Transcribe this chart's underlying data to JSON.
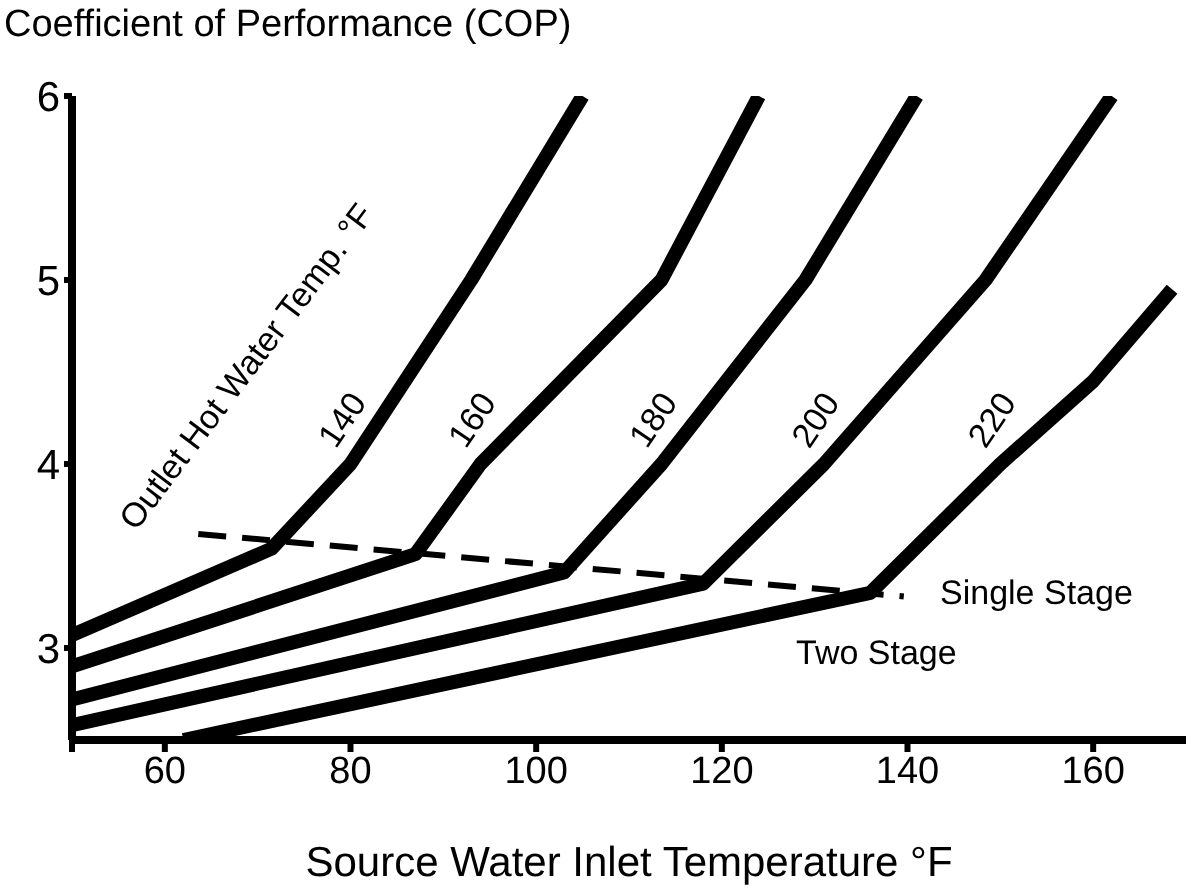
{
  "chart_data": {
    "type": "line",
    "ylabel": "Coefficient of Performance (COP)",
    "xlabel": "Source Water Inlet Temperature °F",
    "xlim": [
      50,
      170
    ],
    "xticks": [
      {
        "value": 50,
        "label": null
      },
      60,
      80,
      100,
      120,
      140,
      160
    ],
    "ylim": [
      2.5,
      6
    ],
    "yticks": [
      3,
      4,
      5,
      6
    ],
    "grid": false,
    "legend": false,
    "marker": "none",
    "line_style": "solid",
    "series": [
      {
        "name": "140",
        "color": "#000000",
        "x": [
          50,
          71.5,
          80,
          93,
          105
        ],
        "values": [
          3.07,
          3.54,
          4.0,
          5.0,
          6.0
        ]
      },
      {
        "name": "160",
        "color": "#000000",
        "x": [
          50,
          87,
          94,
          113.5,
          124
        ],
        "values": [
          2.9,
          3.51,
          4.0,
          5.0,
          6.0
        ]
      },
      {
        "name": "180",
        "color": "#000000",
        "x": [
          50,
          103,
          113.5,
          129,
          141
        ],
        "values": [
          2.72,
          3.41,
          4.0,
          5.0,
          6.0
        ]
      },
      {
        "name": "200",
        "color": "#000000",
        "x": [
          50,
          118,
          131,
          148.4,
          162
        ],
        "values": [
          2.58,
          3.35,
          4.0,
          5.0,
          6.0
        ]
      },
      {
        "name": "220",
        "color": "#000000",
        "x": [
          62,
          136,
          150,
          160,
          168.5
        ],
        "values": [
          2.5,
          3.3,
          4.0,
          4.45,
          4.95
        ]
      },
      {
        "color": "#000000",
        "line_style": "dashed",
        "x": [
          63.6,
          139.6
        ],
        "values": [
          3.62,
          3.28
        ]
      }
    ],
    "annotations": [
      "Outlet Hot Water Temp. °F",
      "Single Stage",
      "Two Stage"
    ]
  }
}
